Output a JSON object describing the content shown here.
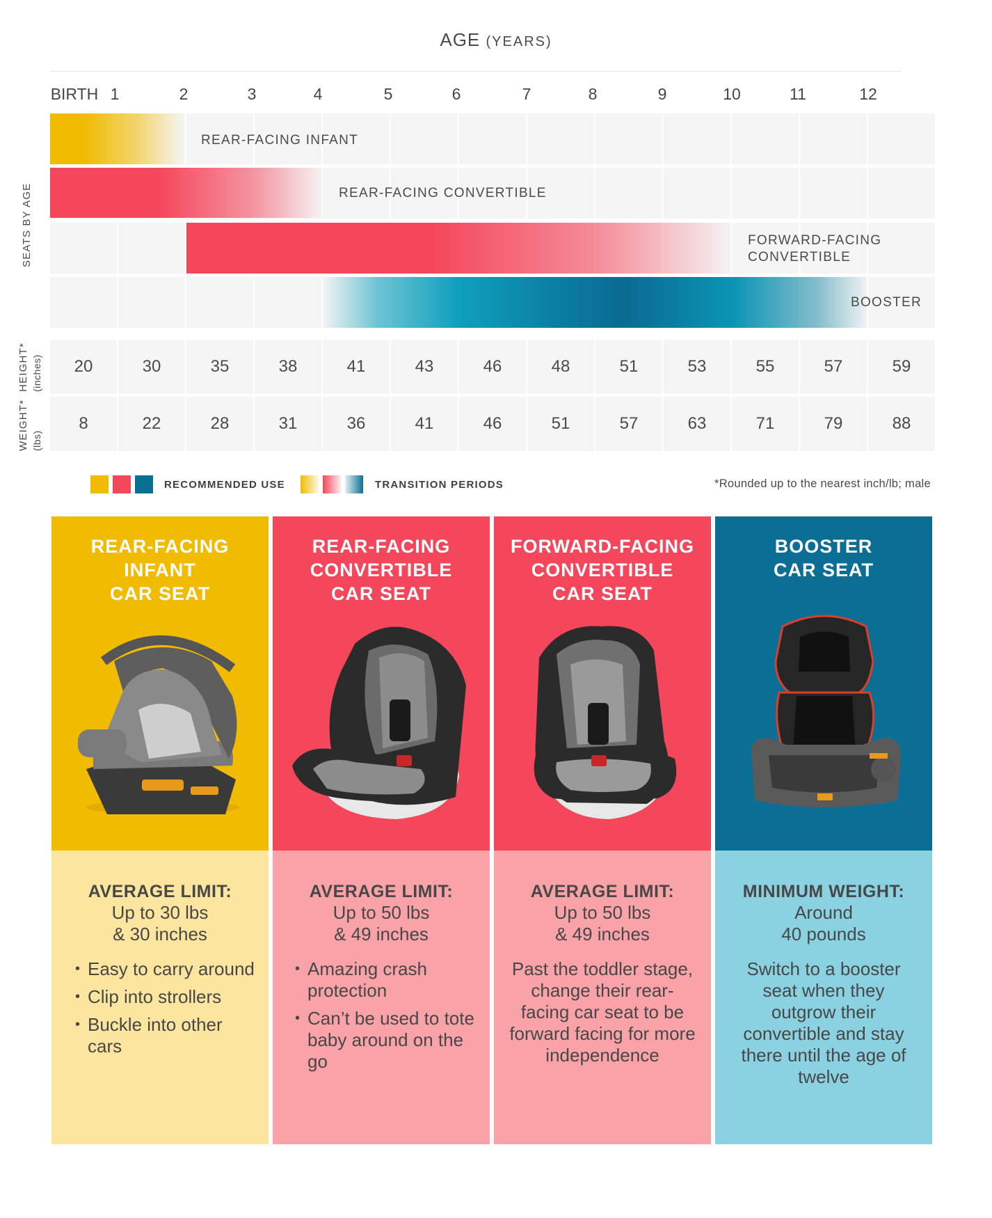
{
  "chart_data": {
    "type": "table",
    "title": "AGE",
    "title_sub": "(YEARS)",
    "age_ticks": [
      "BIRTH",
      "1",
      "2",
      "3",
      "4",
      "5",
      "6",
      "7",
      "8",
      "9",
      "10",
      "11",
      "12"
    ],
    "seats_axis_label": "SEATS BY AGE",
    "seat_bars": [
      {
        "name": "REAR-FACING INFANT",
        "color": "#f0bb00",
        "recommended": [
          0,
          1
        ],
        "transition_end": 2
      },
      {
        "name": "REAR-FACING CONVERTIBLE",
        "color": "#f5475c",
        "recommended": [
          0,
          2
        ],
        "transition_end": 4
      },
      {
        "name": "FORWARD-FACING CONVERTIBLE",
        "color": "#f5475c",
        "recommended": [
          2,
          7
        ],
        "transition_end": 10
      },
      {
        "name": "BOOSTER",
        "color": "#0b6f95",
        "recommended": [
          6,
          9
        ],
        "transition_start": 4,
        "transition_end": 12
      }
    ],
    "forward_label_line1": "FORWARD-FACING",
    "forward_label_line2": "CONVERTIBLE",
    "height_label": "HEIGHT*",
    "height_unit": "(inches)",
    "heights": [
      20,
      30,
      35,
      38,
      41,
      43,
      46,
      48,
      51,
      53,
      55,
      57,
      59
    ],
    "weight_label": "WEIGHT*",
    "weight_unit": "(lbs)",
    "weights": [
      8,
      22,
      28,
      31,
      36,
      41,
      46,
      51,
      57,
      63,
      71,
      79,
      88
    ]
  },
  "legend": {
    "recommended": "RECOMMENDED USE",
    "transition": "TRANSITION PERIODS",
    "colors": [
      "#f0bb00",
      "#f5475c",
      "#0b6f95"
    ]
  },
  "footnote": "*Rounded up to the nearest inch/lb; male",
  "cards": [
    {
      "title": [
        "REAR-FACING",
        "INFANT",
        "CAR SEAT"
      ],
      "color": "#f0bb00",
      "light": "#fce59f",
      "image": "infant-car-seat",
      "head": "AVERAGE LIMIT:",
      "sub": [
        "Up to 30 lbs",
        "& 30 inches"
      ],
      "bullets": [
        "Easy to carry around",
        "Clip into strollers",
        "Buckle into other cars"
      ]
    },
    {
      "title": [
        "REAR-FACING",
        "CONVERTIBLE",
        "CAR SEAT"
      ],
      "color": "#f5475c",
      "light": "#f9a3a9",
      "image": "rear-facing-convertible-seat",
      "head": "AVERAGE LIMIT:",
      "sub": [
        "Up to 50 lbs",
        "& 49 inches"
      ],
      "bullets": [
        "Amazing crash protection",
        "Can’t be used to tote baby around on the go"
      ]
    },
    {
      "title": [
        "FORWARD-FACING",
        "CONVERTIBLE",
        "CAR SEAT"
      ],
      "color": "#f5475c",
      "light": "#f9a3a9",
      "image": "forward-facing-convertible-seat",
      "head": "AVERAGE LIMIT:",
      "sub": [
        "Up to 50 lbs",
        "& 49 inches"
      ],
      "text": "Past the toddler stage, change their rear-facing car seat to be forward facing for more independence"
    },
    {
      "title": [
        "BOOSTER",
        "CAR SEAT"
      ],
      "color": "#0b6f95",
      "light": "#8ad2e1",
      "image": "booster-car-seat",
      "head": "MINIMUM WEIGHT:",
      "sub": [
        "Around",
        "40 pounds"
      ],
      "text": "Switch to a booster seat when they outgrow their convertible and stay there until the age of twelve"
    }
  ]
}
